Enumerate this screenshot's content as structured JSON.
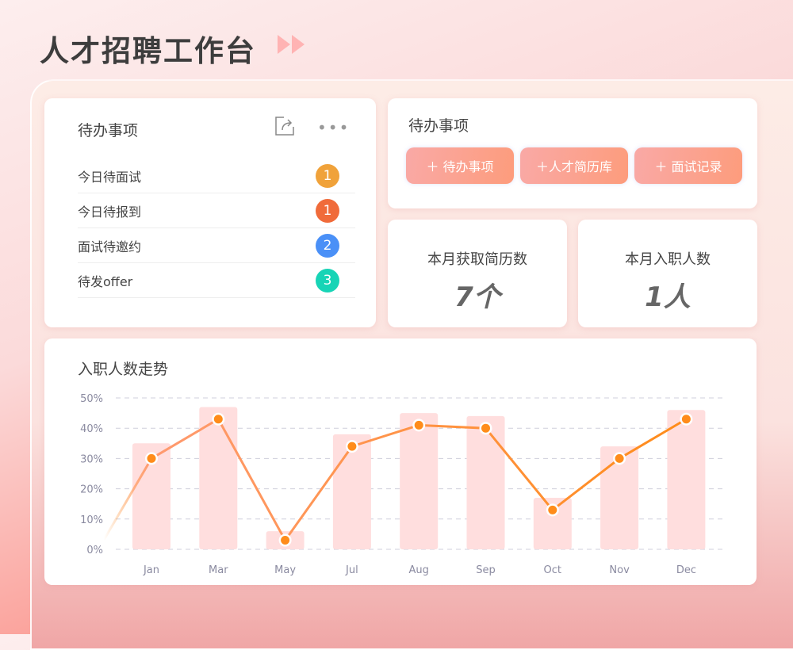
{
  "header": {
    "title": "人才招聘工作台",
    "arrow_icon": "double-play-icon"
  },
  "todo_card": {
    "title": "待办事项",
    "share_icon": "share-icon",
    "more_icon": "more-icon",
    "items": [
      {
        "label": "今日待面试",
        "count": "1",
        "color": "#f0a23a"
      },
      {
        "label": "今日待报到",
        "count": "1",
        "color": "#f06b3a"
      },
      {
        "label": "面试待邀约",
        "count": "2",
        "color": "#4a90f7"
      },
      {
        "label": "待发offer",
        "count": "3",
        "color": "#17d4b6"
      }
    ]
  },
  "quick_card": {
    "title": "待办事项",
    "buttons": [
      {
        "label": "＋ 待办事项"
      },
      {
        "label": "＋人才简历库"
      },
      {
        "label": "＋ 面试记录"
      }
    ]
  },
  "stats": [
    {
      "label": "本月获取简历数",
      "value": "7个"
    },
    {
      "label": "本月入职人数",
      "value": "1人"
    }
  ],
  "chart_data": {
    "type": "bar+line",
    "title": "入职人数走势",
    "categories": [
      "Jan",
      "Mar",
      "May",
      "Jul",
      "Aug",
      "Sep",
      "Oct",
      "Nov",
      "Dec"
    ],
    "series": [
      {
        "type": "bar",
        "values": [
          35,
          47,
          6,
          38,
          45,
          44,
          17,
          34,
          46
        ],
        "color": "#ffdede"
      },
      {
        "type": "line",
        "values": [
          30,
          43,
          3,
          34,
          41,
          40,
          13,
          30,
          43
        ],
        "color": "#ff8c1a"
      }
    ],
    "yticks": [
      "0%",
      "10%",
      "20%",
      "30%",
      "40%",
      "50%"
    ],
    "ylim": [
      0,
      50
    ],
    "grid": true
  }
}
